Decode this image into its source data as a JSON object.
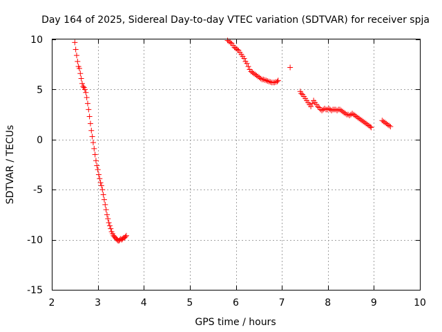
{
  "chart_data": {
    "type": "scatter",
    "title": "Day 164 of 2025, Sidereal Day-to-day VTEC variation (SDTVAR) for receiver spja",
    "xlabel": "GPS time / hours",
    "ylabel": "SDTVAR / TECUs",
    "xlim": [
      2,
      10
    ],
    "ylim": [
      -15,
      10
    ],
    "xticks": [
      2,
      3,
      4,
      5,
      6,
      7,
      8,
      9,
      10
    ],
    "yticks": [
      -15,
      -10,
      -5,
      0,
      5,
      10
    ],
    "grid": true,
    "marker": "+",
    "color": "#ff0000",
    "series": [
      {
        "name": "spja",
        "points": [
          [
            2.5,
            9.7
          ],
          [
            2.52,
            9.0
          ],
          [
            2.54,
            8.4
          ],
          [
            2.56,
            7.8
          ],
          [
            2.58,
            7.3
          ],
          [
            2.6,
            7.1
          ],
          [
            2.62,
            6.6
          ],
          [
            2.64,
            6.1
          ],
          [
            2.66,
            5.6
          ],
          [
            2.68,
            5.3
          ],
          [
            2.7,
            5.2
          ],
          [
            2.72,
            5.0
          ],
          [
            2.74,
            4.7
          ],
          [
            2.76,
            4.2
          ],
          [
            2.78,
            3.6
          ],
          [
            2.8,
            3.0
          ],
          [
            2.82,
            2.3
          ],
          [
            2.84,
            1.6
          ],
          [
            2.86,
            0.9
          ],
          [
            2.88,
            0.3
          ],
          [
            2.9,
            -0.3
          ],
          [
            2.92,
            -0.9
          ],
          [
            2.94,
            -1.5
          ],
          [
            2.96,
            -2.1
          ],
          [
            2.98,
            -2.6
          ],
          [
            3.0,
            -3.0
          ],
          [
            3.02,
            -3.5
          ],
          [
            3.04,
            -3.9
          ],
          [
            3.06,
            -4.3
          ],
          [
            3.08,
            -4.6
          ],
          [
            3.1,
            -5.0
          ],
          [
            3.12,
            -5.5
          ],
          [
            3.14,
            -6.0
          ],
          [
            3.16,
            -6.5
          ],
          [
            3.18,
            -7.0
          ],
          [
            3.2,
            -7.5
          ],
          [
            3.22,
            -7.9
          ],
          [
            3.24,
            -8.3
          ],
          [
            3.26,
            -8.6
          ],
          [
            3.28,
            -8.9
          ],
          [
            3.3,
            -9.2
          ],
          [
            3.32,
            -9.4
          ],
          [
            3.34,
            -9.6
          ],
          [
            3.36,
            -9.7
          ],
          [
            3.38,
            -9.8
          ],
          [
            3.4,
            -9.9
          ],
          [
            3.42,
            -10.0
          ],
          [
            3.44,
            -10.1
          ],
          [
            3.46,
            -10.1
          ],
          [
            3.48,
            -10.0
          ],
          [
            3.5,
            -9.9
          ],
          [
            3.52,
            -10.0
          ],
          [
            3.54,
            -9.9
          ],
          [
            3.56,
            -9.8
          ],
          [
            3.58,
            -9.8
          ],
          [
            3.6,
            -9.7
          ],
          [
            3.62,
            -9.6
          ],
          [
            5.82,
            9.9
          ],
          [
            5.85,
            9.8
          ],
          [
            5.88,
            9.7
          ],
          [
            5.91,
            9.6
          ],
          [
            5.94,
            9.4
          ],
          [
            5.97,
            9.2
          ],
          [
            6.0,
            9.1
          ],
          [
            6.03,
            9.0
          ],
          [
            6.06,
            8.9
          ],
          [
            6.09,
            8.7
          ],
          [
            6.12,
            8.5
          ],
          [
            6.15,
            8.3
          ],
          [
            6.18,
            8.1
          ],
          [
            6.21,
            7.8
          ],
          [
            6.24,
            7.6
          ],
          [
            6.27,
            7.3
          ],
          [
            6.3,
            7.0
          ],
          [
            6.33,
            6.8
          ],
          [
            6.36,
            6.7
          ],
          [
            6.39,
            6.6
          ],
          [
            6.42,
            6.5
          ],
          [
            6.45,
            6.4
          ],
          [
            6.48,
            6.3
          ],
          [
            6.51,
            6.2
          ],
          [
            6.54,
            6.1
          ],
          [
            6.57,
            6.0
          ],
          [
            6.6,
            6.0
          ],
          [
            6.63,
            5.95
          ],
          [
            6.66,
            5.9
          ],
          [
            6.69,
            5.85
          ],
          [
            6.72,
            5.8
          ],
          [
            6.75,
            5.75
          ],
          [
            6.78,
            5.7
          ],
          [
            6.81,
            5.7
          ],
          [
            6.84,
            5.7
          ],
          [
            6.87,
            5.75
          ],
          [
            6.9,
            5.8
          ],
          [
            6.92,
            5.9
          ],
          [
            7.18,
            7.2
          ],
          [
            7.4,
            4.8
          ],
          [
            7.42,
            4.6
          ],
          [
            7.45,
            4.5
          ],
          [
            7.48,
            4.3
          ],
          [
            7.51,
            4.1
          ],
          [
            7.54,
            3.9
          ],
          [
            7.57,
            3.7
          ],
          [
            7.6,
            3.5
          ],
          [
            7.63,
            3.3
          ],
          [
            7.66,
            3.6
          ],
          [
            7.69,
            3.9
          ],
          [
            7.72,
            3.7
          ],
          [
            7.75,
            3.5
          ],
          [
            7.78,
            3.3
          ],
          [
            7.81,
            3.2
          ],
          [
            7.84,
            3.0
          ],
          [
            7.87,
            2.9
          ],
          [
            7.9,
            3.0
          ],
          [
            7.93,
            3.1
          ],
          [
            7.96,
            3.0
          ],
          [
            7.99,
            3.0
          ],
          [
            8.02,
            3.1
          ],
          [
            8.05,
            3.0
          ],
          [
            8.08,
            2.9
          ],
          [
            8.11,
            3.0
          ],
          [
            8.14,
            3.0
          ],
          [
            8.17,
            3.0
          ],
          [
            8.2,
            2.9
          ],
          [
            8.23,
            3.0
          ],
          [
            8.26,
            3.0
          ],
          [
            8.29,
            2.9
          ],
          [
            8.32,
            2.8
          ],
          [
            8.35,
            2.7
          ],
          [
            8.38,
            2.6
          ],
          [
            8.41,
            2.5
          ],
          [
            8.44,
            2.5
          ],
          [
            8.47,
            2.4
          ],
          [
            8.5,
            2.5
          ],
          [
            8.53,
            2.6
          ],
          [
            8.56,
            2.5
          ],
          [
            8.59,
            2.4
          ],
          [
            8.62,
            2.3
          ],
          [
            8.65,
            2.2
          ],
          [
            8.68,
            2.1
          ],
          [
            8.71,
            2.0
          ],
          [
            8.74,
            1.9
          ],
          [
            8.77,
            1.8
          ],
          [
            8.8,
            1.7
          ],
          [
            8.83,
            1.6
          ],
          [
            8.86,
            1.5
          ],
          [
            8.89,
            1.4
          ],
          [
            8.92,
            1.3
          ],
          [
            8.94,
            1.2
          ],
          [
            9.18,
            1.9
          ],
          [
            9.21,
            1.8
          ],
          [
            9.24,
            1.7
          ],
          [
            9.27,
            1.6
          ],
          [
            9.3,
            1.5
          ],
          [
            9.33,
            1.4
          ],
          [
            9.36,
            1.3
          ]
        ]
      }
    ]
  }
}
